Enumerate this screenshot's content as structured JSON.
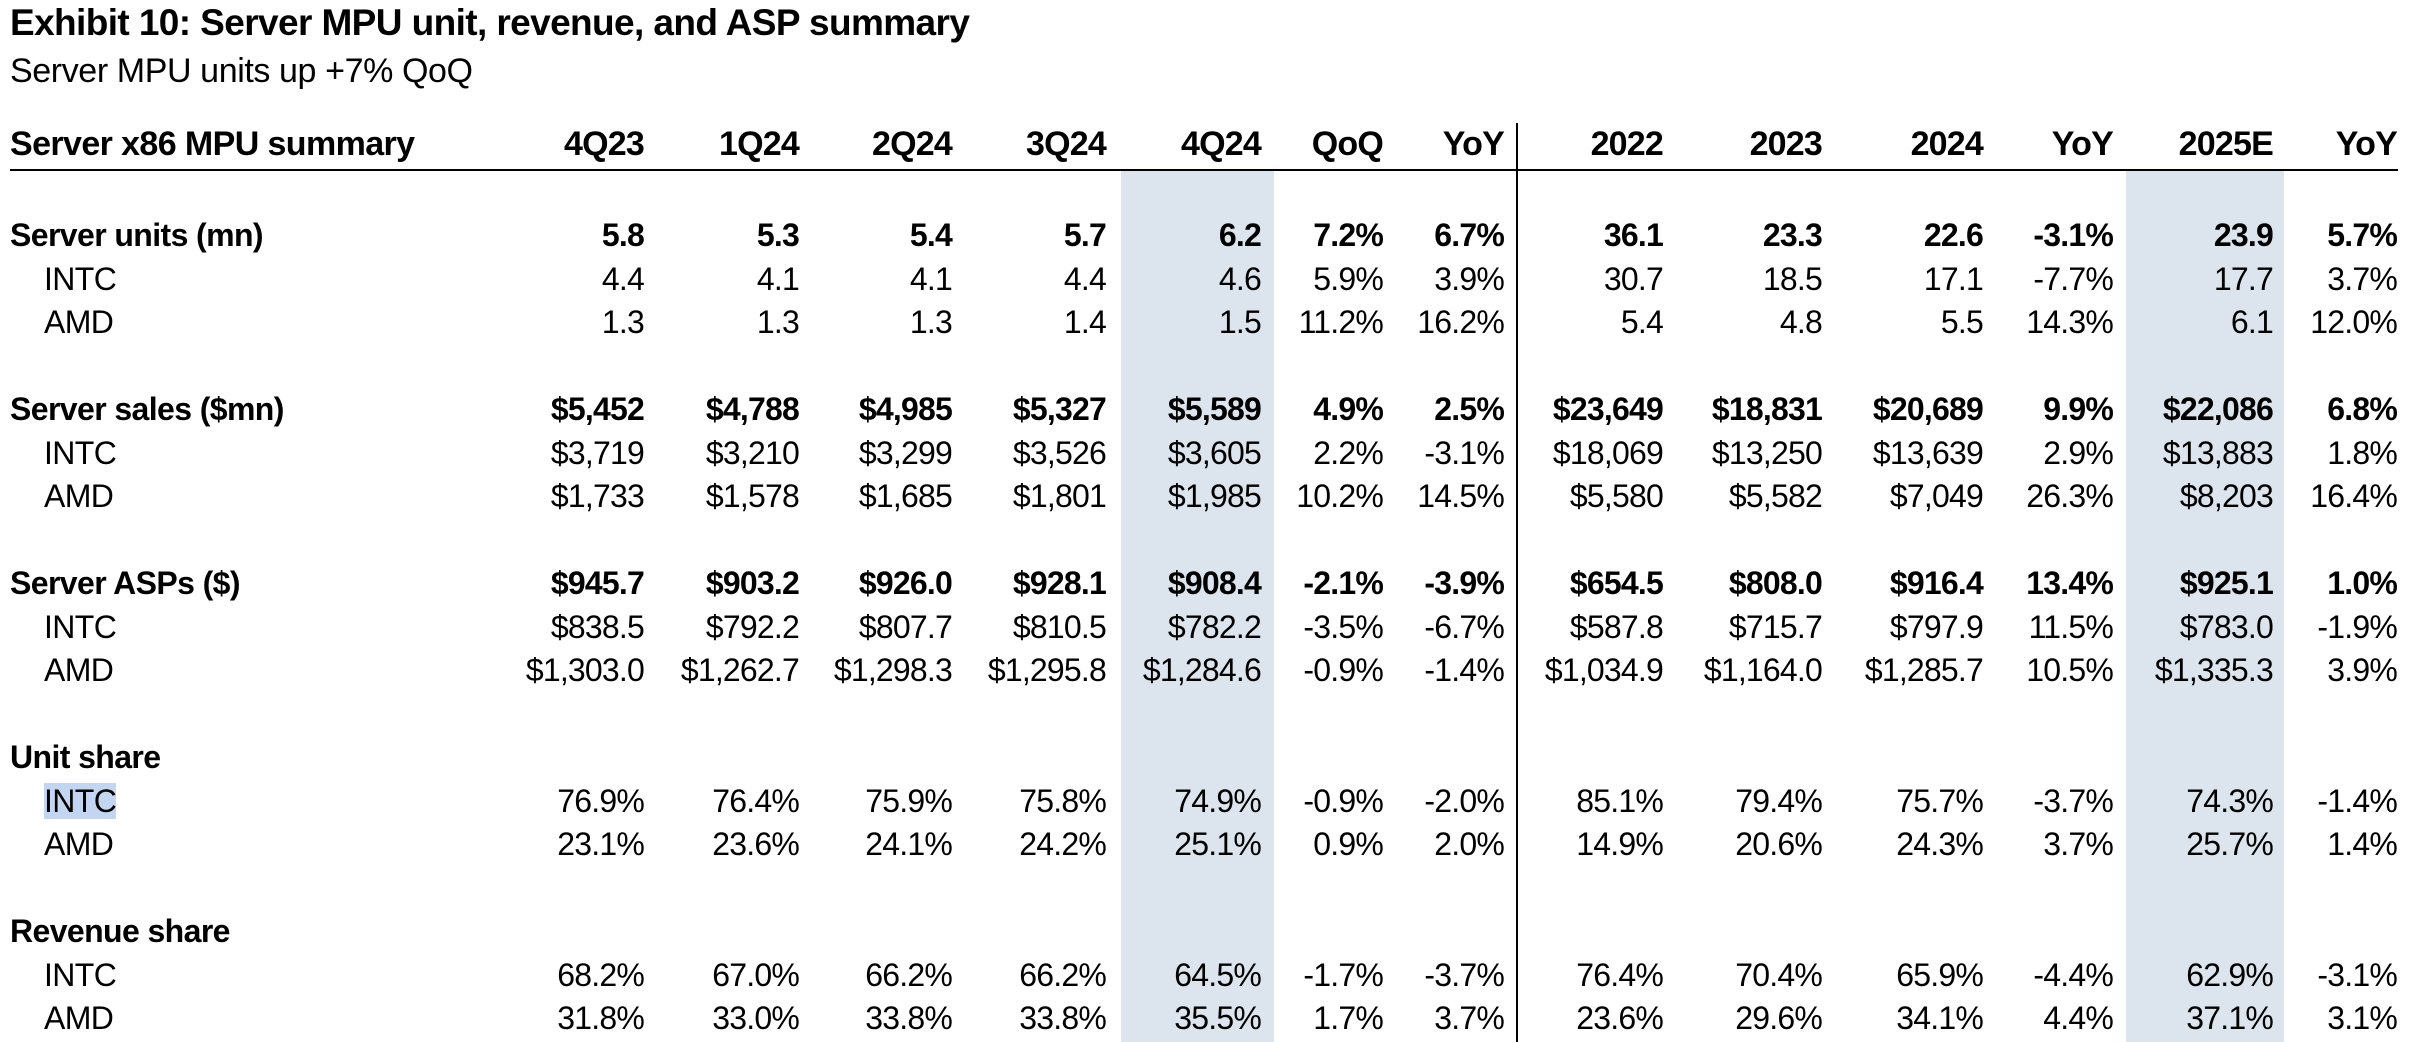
{
  "title": "Exhibit 10: Server MPU unit, revenue, and ASP summary",
  "subtitle": "Server MPU units up +7% QoQ",
  "columns": [
    "4Q23",
    "1Q24",
    "2Q24",
    "3Q24",
    "4Q24",
    "QoQ",
    "YoY",
    "2022",
    "2023",
    "2024",
    "YoY",
    "2025E",
    "YoY"
  ],
  "header_label": "Server x86 MPU summary",
  "sections": [
    {
      "title": "Server units (mn)",
      "total": [
        "5.8",
        "5.3",
        "5.4",
        "5.7",
        "6.2",
        "7.2%",
        "6.7%",
        "36.1",
        "23.3",
        "22.6",
        "-3.1%",
        "23.9",
        "5.7%"
      ],
      "rows": [
        {
          "label": "INTC",
          "values": [
            "4.4",
            "4.1",
            "4.1",
            "4.4",
            "4.6",
            "5.9%",
            "3.9%",
            "30.7",
            "18.5",
            "17.1",
            "-7.7%",
            "17.7",
            "3.7%"
          ]
        },
        {
          "label": "AMD",
          "values": [
            "1.3",
            "1.3",
            "1.3",
            "1.4",
            "1.5",
            "11.2%",
            "16.2%",
            "5.4",
            "4.8",
            "5.5",
            "14.3%",
            "6.1",
            "12.0%"
          ]
        }
      ]
    },
    {
      "title": "Server sales ($mn)",
      "total": [
        "$5,452",
        "$4,788",
        "$4,985",
        "$5,327",
        "$5,589",
        "4.9%",
        "2.5%",
        "$23,649",
        "$18,831",
        "$20,689",
        "9.9%",
        "$22,086",
        "6.8%"
      ],
      "rows": [
        {
          "label": "INTC",
          "values": [
            "$3,719",
            "$3,210",
            "$3,299",
            "$3,526",
            "$3,605",
            "2.2%",
            "-3.1%",
            "$18,069",
            "$13,250",
            "$13,639",
            "2.9%",
            "$13,883",
            "1.8%"
          ]
        },
        {
          "label": "AMD",
          "values": [
            "$1,733",
            "$1,578",
            "$1,685",
            "$1,801",
            "$1,985",
            "10.2%",
            "14.5%",
            "$5,580",
            "$5,582",
            "$7,049",
            "26.3%",
            "$8,203",
            "16.4%"
          ]
        }
      ]
    },
    {
      "title": "Server ASPs ($)",
      "total": [
        "$945.7",
        "$903.2",
        "$926.0",
        "$928.1",
        "$908.4",
        "-2.1%",
        "-3.9%",
        "$654.5",
        "$808.0",
        "$916.4",
        "13.4%",
        "$925.1",
        "1.0%"
      ],
      "rows": [
        {
          "label": "INTC",
          "values": [
            "$838.5",
            "$792.2",
            "$807.7",
            "$810.5",
            "$782.2",
            "-3.5%",
            "-6.7%",
            "$587.8",
            "$715.7",
            "$797.9",
            "11.5%",
            "$783.0",
            "-1.9%"
          ]
        },
        {
          "label": "AMD",
          "values": [
            "$1,303.0",
            "$1,262.7",
            "$1,298.3",
            "$1,295.8",
            "$1,284.6",
            "-0.9%",
            "-1.4%",
            "$1,034.9",
            "$1,164.0",
            "$1,285.7",
            "10.5%",
            "$1,335.3",
            "3.9%"
          ]
        }
      ]
    },
    {
      "title": "Unit share",
      "total": null,
      "rows": [
        {
          "label": "INTC",
          "values": [
            "76.9%",
            "76.4%",
            "75.9%",
            "75.8%",
            "74.9%",
            "-0.9%",
            "-2.0%",
            "85.1%",
            "79.4%",
            "75.7%",
            "-3.7%",
            "74.3%",
            "-1.4%"
          ]
        },
        {
          "label": "AMD",
          "values": [
            "23.1%",
            "23.6%",
            "24.1%",
            "24.2%",
            "25.1%",
            "0.9%",
            "2.0%",
            "14.9%",
            "20.6%",
            "24.3%",
            "3.7%",
            "25.7%",
            "1.4%"
          ]
        }
      ]
    },
    {
      "title": "Revenue share",
      "total": null,
      "rows": [
        {
          "label": "INTC",
          "values": [
            "68.2%",
            "67.0%",
            "66.2%",
            "66.2%",
            "64.5%",
            "-1.7%",
            "-3.7%",
            "76.4%",
            "70.4%",
            "65.9%",
            "-4.4%",
            "62.9%",
            "-3.1%"
          ]
        },
        {
          "label": "AMD",
          "values": [
            "31.8%",
            "33.0%",
            "33.8%",
            "33.8%",
            "35.5%",
            "1.7%",
            "3.7%",
            "23.6%",
            "29.6%",
            "34.1%",
            "4.4%",
            "37.1%",
            "3.1%"
          ]
        }
      ]
    }
  ]
}
